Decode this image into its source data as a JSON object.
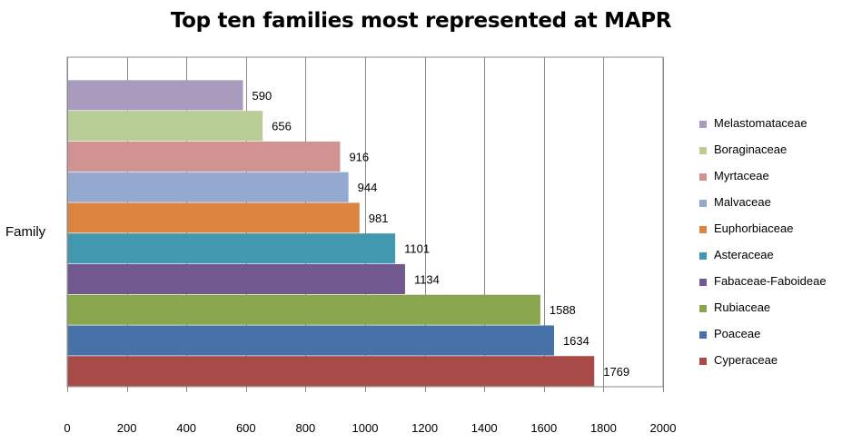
{
  "chart_data": {
    "type": "bar",
    "orientation": "horizontal",
    "title": "Top ten families most represented at MAPR",
    "ylabel": "Family",
    "xlabel": "",
    "xlim": [
      0,
      2000
    ],
    "xticks": [
      0,
      200,
      400,
      600,
      800,
      1000,
      1200,
      1400,
      1600,
      1800,
      2000
    ],
    "grid": "vertical",
    "legend_position": "right",
    "series": [
      {
        "name": "Cyperaceae",
        "value": 1769,
        "color": "#A84A47"
      },
      {
        "name": "Poaceae",
        "value": 1634,
        "color": "#4672A8"
      },
      {
        "name": "Rubiaceae",
        "value": 1588,
        "color": "#89A54E"
      },
      {
        "name": "Fabaceae-Faboideae",
        "value": 1134,
        "color": "#71588F"
      },
      {
        "name": "Asteraceae",
        "value": 1101,
        "color": "#4198AF"
      },
      {
        "name": "Euphorbiaceae",
        "value": 981,
        "color": "#DB843D"
      },
      {
        "name": "Malvaceae",
        "value": 944,
        "color": "#93A9CF"
      },
      {
        "name": "Myrtaceae",
        "value": 916,
        "color": "#D19392"
      },
      {
        "name": "Boraginaceae",
        "value": 656,
        "color": "#B9CD96"
      },
      {
        "name": "Melastomataceae",
        "value": 590,
        "color": "#A99BBD"
      }
    ]
  }
}
